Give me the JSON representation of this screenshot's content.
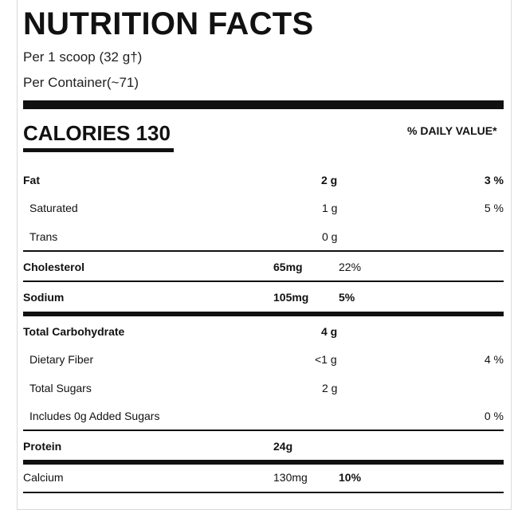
{
  "header": {
    "title": "NUTRITION FACTS",
    "serving_size": "Per 1 scoop (32 g†)",
    "servings_per_container": "Per Container(~71)"
  },
  "calories": {
    "label": "CALORIES 130",
    "daily_value_header": "% DAILY VALUE*"
  },
  "nutrients": {
    "fat": {
      "label": "Fat",
      "amount": "2 g",
      "dv": "3 %"
    },
    "saturated": {
      "label": "Saturated",
      "amount": "1 g",
      "dv": "5 %"
    },
    "trans": {
      "label": "Trans",
      "amount": "0 g"
    },
    "cholesterol": {
      "label": "Cholesterol",
      "amount": "65mg",
      "dv": "22%"
    },
    "sodium": {
      "label": "Sodium",
      "amount": "105mg",
      "dv": "5%"
    },
    "carbohydrate": {
      "label": "Total Carbohydrate",
      "amount": "4 g"
    },
    "fiber": {
      "label": "Dietary Fiber",
      "amount": "<1 g",
      "dv": "4 %"
    },
    "sugars": {
      "label": "Total Sugars",
      "amount": "2 g"
    },
    "added_sugars": {
      "label": "Includes 0g Added Sugars",
      "dv": "0 %"
    },
    "protein": {
      "label": "Protein",
      "amount": "24g"
    },
    "calcium": {
      "label": "Calcium",
      "amount": "130mg",
      "dv": "10%"
    }
  }
}
